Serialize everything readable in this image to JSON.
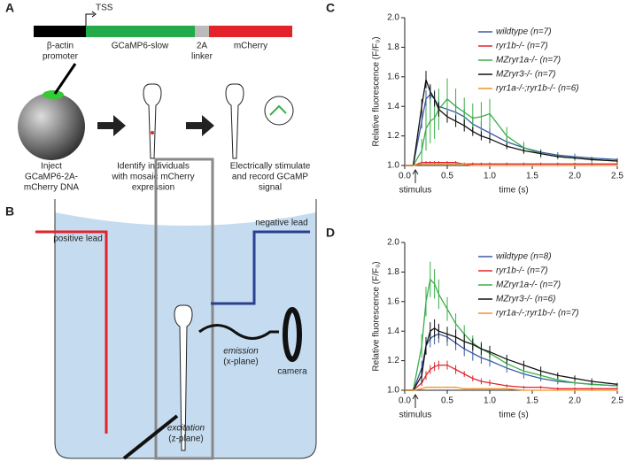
{
  "panels": {
    "a": {
      "letter": "A",
      "tss": "TSS",
      "promoter": [
        "β-actin",
        "promoter"
      ],
      "gene": "GCaMP6-slow",
      "linker": [
        "2A",
        "linker"
      ],
      "reporter": "mCherry",
      "steps": [
        [
          "Inject",
          "GCaMP6-2A-",
          "mCherry DNA"
        ],
        [
          "Identify individuals",
          "with mosaic mCherry",
          "expression"
        ],
        [
          "Electrically stimulate",
          "and record GCaMP",
          "signal"
        ]
      ]
    },
    "b": {
      "letter": "B",
      "positive": "positive lead",
      "negative": "negative lead",
      "emission": [
        "emission",
        "(x-plane)"
      ],
      "camera": "camera",
      "excitation": [
        "excitation",
        "(z-plane)"
      ]
    }
  },
  "chart_data": [
    {
      "type": "line",
      "panel": "C",
      "y_label": "Relative fluorescence (F/F₀)",
      "x_label": "time (s)",
      "annotation": "stimulus",
      "x": [
        0,
        0.1,
        0.2,
        0.25,
        0.3,
        0.35,
        0.4,
        0.5,
        0.6,
        0.7,
        0.8,
        0.9,
        1.0,
        1.2,
        1.4,
        1.6,
        1.8,
        2.0,
        2.2,
        2.5
      ],
      "xlim": [
        0,
        2.5
      ],
      "xticks": [
        {
          "value": 0,
          "label": "0.0"
        },
        0.5,
        {
          "value": 1,
          "label": "1.0"
        },
        1.5,
        {
          "value": 2,
          "label": "2.0"
        },
        2.5
      ],
      "ylim": [
        1,
        2
      ],
      "yticks": [
        {
          "value": 1,
          "label": "1.0"
        },
        1.2,
        1.4,
        1.6,
        1.8,
        {
          "value": 2,
          "label": "2.0"
        }
      ],
      "series": [
        {
          "name": "wildtype (n=7)",
          "color": "#3b5ba5",
          "values": [
            1.0,
            1.0,
            1.3,
            1.45,
            1.48,
            1.45,
            1.4,
            1.38,
            1.36,
            1.33,
            1.28,
            1.25,
            1.22,
            1.16,
            1.12,
            1.09,
            1.07,
            1.06,
            1.05,
            1.04
          ],
          "errors": [
            0,
            0,
            0.05,
            0.06,
            0.06,
            0.06,
            0.06,
            0.06,
            0.06,
            0.05,
            0.05,
            0.05,
            0.04,
            0.03,
            0.03,
            0.02,
            0.02,
            0.02,
            0.01,
            0.01
          ]
        },
        {
          "name": "ryr1b-/- (n=7)",
          "color": "#e0262b",
          "values": [
            1.0,
            1.0,
            1.02,
            1.02,
            1.02,
            1.02,
            1.02,
            1.02,
            1.02,
            1.01,
            1.01,
            1.01,
            1.01,
            1.01,
            1.01,
            1.01,
            1.01,
            1.01,
            1.01,
            1.01
          ],
          "errors": [
            0,
            0,
            0.01,
            0.01,
            0.01,
            0.01,
            0.01,
            0.01,
            0.01,
            0.01,
            0.01,
            0.01,
            0.01,
            0.01,
            0.01,
            0.01,
            0.01,
            0.01,
            0.01,
            0.01
          ]
        },
        {
          "name": "MZryr1a-/- (n=7)",
          "color": "#3aae4a",
          "values": [
            1.0,
            1.0,
            1.1,
            1.25,
            1.3,
            1.32,
            1.38,
            1.45,
            1.4,
            1.36,
            1.32,
            1.33,
            1.35,
            1.2,
            1.12,
            1.08,
            1.06,
            1.05,
            1.04,
            1.03
          ],
          "errors": [
            0,
            0,
            0.08,
            0.15,
            0.15,
            0.14,
            0.14,
            0.14,
            0.12,
            0.1,
            0.1,
            0.1,
            0.1,
            0.06,
            0.04,
            0.03,
            0.02,
            0.02,
            0.02,
            0.01
          ]
        },
        {
          "name": "MZryr3-/- (n=7)",
          "color": "#111111",
          "values": [
            1.0,
            1.0,
            1.4,
            1.58,
            1.5,
            1.45,
            1.38,
            1.33,
            1.3,
            1.27,
            1.23,
            1.2,
            1.18,
            1.13,
            1.1,
            1.08,
            1.06,
            1.05,
            1.04,
            1.03
          ],
          "errors": [
            0,
            0,
            0.05,
            0.06,
            0.05,
            0.05,
            0.05,
            0.04,
            0.04,
            0.04,
            0.03,
            0.03,
            0.03,
            0.02,
            0.02,
            0.02,
            0.01,
            0.01,
            0.01,
            0.01
          ]
        },
        {
          "name": "ryr1a-/-;ryr1b-/- (n=6)",
          "color": "#f0932b",
          "values": [
            1.0,
            1.0,
            1.01,
            1.01,
            1.01,
            1.01,
            1.01,
            1.01,
            1.01,
            1.01,
            1.0,
            1.0,
            1.0,
            1.0,
            1.0,
            1.0,
            1.0,
            1.0,
            1.0,
            1.0
          ],
          "errors": [
            0,
            0,
            0.005,
            0.005,
            0.005,
            0.005,
            0.005,
            0.005,
            0.005,
            0.005,
            0.005,
            0.005,
            0.005,
            0.005,
            0.005,
            0.005,
            0.005,
            0.005,
            0.005,
            0.005
          ]
        }
      ]
    },
    {
      "type": "line",
      "panel": "D",
      "y_label": "Relative fluorescence (F/F₀)",
      "x_label": "time (s)",
      "annotation": "stimulus",
      "x": [
        0,
        0.1,
        0.2,
        0.25,
        0.3,
        0.35,
        0.4,
        0.5,
        0.6,
        0.7,
        0.8,
        0.9,
        1.0,
        1.2,
        1.4,
        1.6,
        1.8,
        2.0,
        2.2,
        2.5
      ],
      "xlim": [
        0,
        2.5
      ],
      "xticks": [
        {
          "value": 0,
          "label": "0.0"
        },
        0.5,
        {
          "value": 1,
          "label": "1.0"
        },
        1.5,
        {
          "value": 2,
          "label": "2.0"
        },
        2.5
      ],
      "ylim": [
        1,
        2
      ],
      "yticks": [
        {
          "value": 1,
          "label": "1.0"
        },
        1.2,
        1.4,
        1.6,
        1.8,
        {
          "value": 2,
          "label": "2.0"
        }
      ],
      "series": [
        {
          "name": "wildtype (n=8)",
          "color": "#3b5ba5",
          "values": [
            1.0,
            1.0,
            1.15,
            1.3,
            1.35,
            1.37,
            1.38,
            1.36,
            1.32,
            1.28,
            1.25,
            1.22,
            1.2,
            1.15,
            1.11,
            1.08,
            1.06,
            1.05,
            1.04,
            1.03
          ],
          "errors": [
            0,
            0,
            0.05,
            0.06,
            0.06,
            0.06,
            0.06,
            0.06,
            0.05,
            0.05,
            0.05,
            0.04,
            0.04,
            0.03,
            0.03,
            0.02,
            0.02,
            0.02,
            0.01,
            0.01
          ]
        },
        {
          "name": "ryr1b-/- (n=7)",
          "color": "#e0262b",
          "values": [
            1.0,
            1.0,
            1.05,
            1.1,
            1.14,
            1.16,
            1.17,
            1.17,
            1.14,
            1.11,
            1.08,
            1.06,
            1.05,
            1.03,
            1.02,
            1.02,
            1.01,
            1.01,
            1.01,
            1.01
          ],
          "errors": [
            0,
            0,
            0.02,
            0.03,
            0.03,
            0.03,
            0.03,
            0.03,
            0.03,
            0.02,
            0.02,
            0.02,
            0.02,
            0.01,
            0.01,
            0.01,
            0.01,
            0.01,
            0.01,
            0.01
          ]
        },
        {
          "name": "MZryr1a-/- (n=7)",
          "color": "#3aae4a",
          "values": [
            1.0,
            1.0,
            1.3,
            1.6,
            1.75,
            1.72,
            1.65,
            1.55,
            1.45,
            1.38,
            1.32,
            1.28,
            1.25,
            1.18,
            1.13,
            1.1,
            1.07,
            1.05,
            1.04,
            1.03
          ],
          "errors": [
            0,
            0,
            0.08,
            0.1,
            0.12,
            0.1,
            0.1,
            0.08,
            0.07,
            0.06,
            0.05,
            0.05,
            0.04,
            0.03,
            0.03,
            0.02,
            0.02,
            0.02,
            0.01,
            0.01
          ]
        },
        {
          "name": "MZryr3-/- (n=6)",
          "color": "#111111",
          "values": [
            1.0,
            1.0,
            1.1,
            1.3,
            1.4,
            1.42,
            1.4,
            1.38,
            1.36,
            1.33,
            1.31,
            1.28,
            1.26,
            1.21,
            1.17,
            1.13,
            1.1,
            1.08,
            1.06,
            1.04
          ],
          "errors": [
            0,
            0,
            0.05,
            0.06,
            0.06,
            0.06,
            0.05,
            0.05,
            0.05,
            0.05,
            0.04,
            0.04,
            0.04,
            0.03,
            0.03,
            0.03,
            0.02,
            0.02,
            0.02,
            0.01
          ]
        },
        {
          "name": "ryr1a-/-;ryr1b-/- (n=7)",
          "color": "#f0932b",
          "values": [
            1.0,
            1.0,
            1.01,
            1.02,
            1.02,
            1.02,
            1.02,
            1.02,
            1.02,
            1.01,
            1.01,
            1.01,
            1.01,
            1.01,
            1.0,
            1.0,
            1.0,
            1.0,
            1.0,
            1.0
          ],
          "errors": [
            0,
            0,
            0.005,
            0.005,
            0.005,
            0.005,
            0.005,
            0.005,
            0.005,
            0.005,
            0.005,
            0.005,
            0.005,
            0.005,
            0.005,
            0.005,
            0.005,
            0.005,
            0.005,
            0.005
          ]
        }
      ]
    }
  ]
}
